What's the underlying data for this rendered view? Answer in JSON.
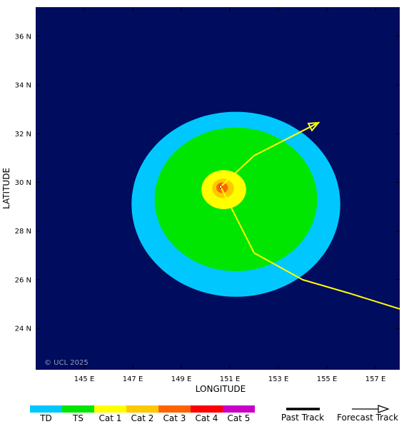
{
  "map": {
    "background": "#000c5e",
    "lon_range": [
      143.0,
      158.0
    ],
    "lat_range": [
      22.3,
      37.2
    ],
    "x_axis": {
      "title": "LONGITUDE",
      "ticks": [
        {
          "value": 145,
          "label": "145 E"
        },
        {
          "value": 147,
          "label": "147 E"
        },
        {
          "value": 149,
          "label": "149 E"
        },
        {
          "value": 151,
          "label": "151 E"
        },
        {
          "value": 153,
          "label": "153 E"
        },
        {
          "value": 155,
          "label": "155 E"
        },
        {
          "value": 157,
          "label": "157 E"
        }
      ]
    },
    "y_axis": {
      "title": "LATITUDE",
      "ticks": [
        {
          "value": 24,
          "label": "24 N"
        },
        {
          "value": 26,
          "label": "26 N"
        },
        {
          "value": 28,
          "label": "28 N"
        },
        {
          "value": 30,
          "label": "30 N"
        },
        {
          "value": 32,
          "label": "32 N"
        },
        {
          "value": 34,
          "label": "34 N"
        },
        {
          "value": 36,
          "label": "36 N"
        }
      ]
    },
    "copyright": "© UCL 2025",
    "wind_field": [
      {
        "category": "TD",
        "center": [
          151.25,
          29.1
        ],
        "radius_lon": 4.3,
        "radius_lat": 3.8
      },
      {
        "category": "TS",
        "center": [
          151.25,
          29.3
        ],
        "radius_lon": 3.35,
        "radius_lat": 2.95
      },
      {
        "category": "Cat 1",
        "center": [
          150.75,
          29.7
        ],
        "radius_lon": 0.92,
        "radius_lat": 0.8
      },
      {
        "category": "Cat 2",
        "center": [
          150.72,
          29.75
        ],
        "radius_lon": 0.45,
        "radius_lat": 0.4
      },
      {
        "category": "Cat 3",
        "center": [
          150.68,
          29.78
        ],
        "radius_lon": 0.24,
        "radius_lat": 0.22
      }
    ],
    "storm_center": [
      150.62,
      29.82
    ],
    "past_track": [
      {
        "lon": 158.0,
        "lat": 24.8,
        "category": "TS"
      },
      {
        "lon": 155.9,
        "lat": 25.45,
        "category": "Cat 1"
      },
      {
        "lon": 154.0,
        "lat": 26.0,
        "category": "Cat 1"
      },
      {
        "lon": 152.0,
        "lat": 27.1,
        "category": "Cat 1"
      },
      {
        "lon": 150.62,
        "lat": 29.82,
        "category": "Cat 1"
      }
    ],
    "forecast_track": [
      {
        "lon": 150.62,
        "lat": 29.82,
        "category": "Cat 2"
      },
      {
        "lon": 152.0,
        "lat": 31.1,
        "category": "Cat 1"
      },
      {
        "lon": 154.65,
        "lat": 32.45,
        "category": "Cat 1"
      }
    ]
  },
  "legend": {
    "categories": [
      {
        "label": "TD",
        "color": "#00c8ff"
      },
      {
        "label": "TS",
        "color": "#00e600"
      },
      {
        "label": "Cat 1",
        "color": "#ffff00"
      },
      {
        "label": "Cat 2",
        "color": "#ffc800"
      },
      {
        "label": "Cat 3",
        "color": "#ff6400"
      },
      {
        "label": "Cat 4",
        "color": "#ff0000"
      },
      {
        "label": "Cat 5",
        "color": "#c800c8"
      }
    ],
    "past_track_label": "Past Track",
    "forecast_track_label": "Forecast Track"
  }
}
